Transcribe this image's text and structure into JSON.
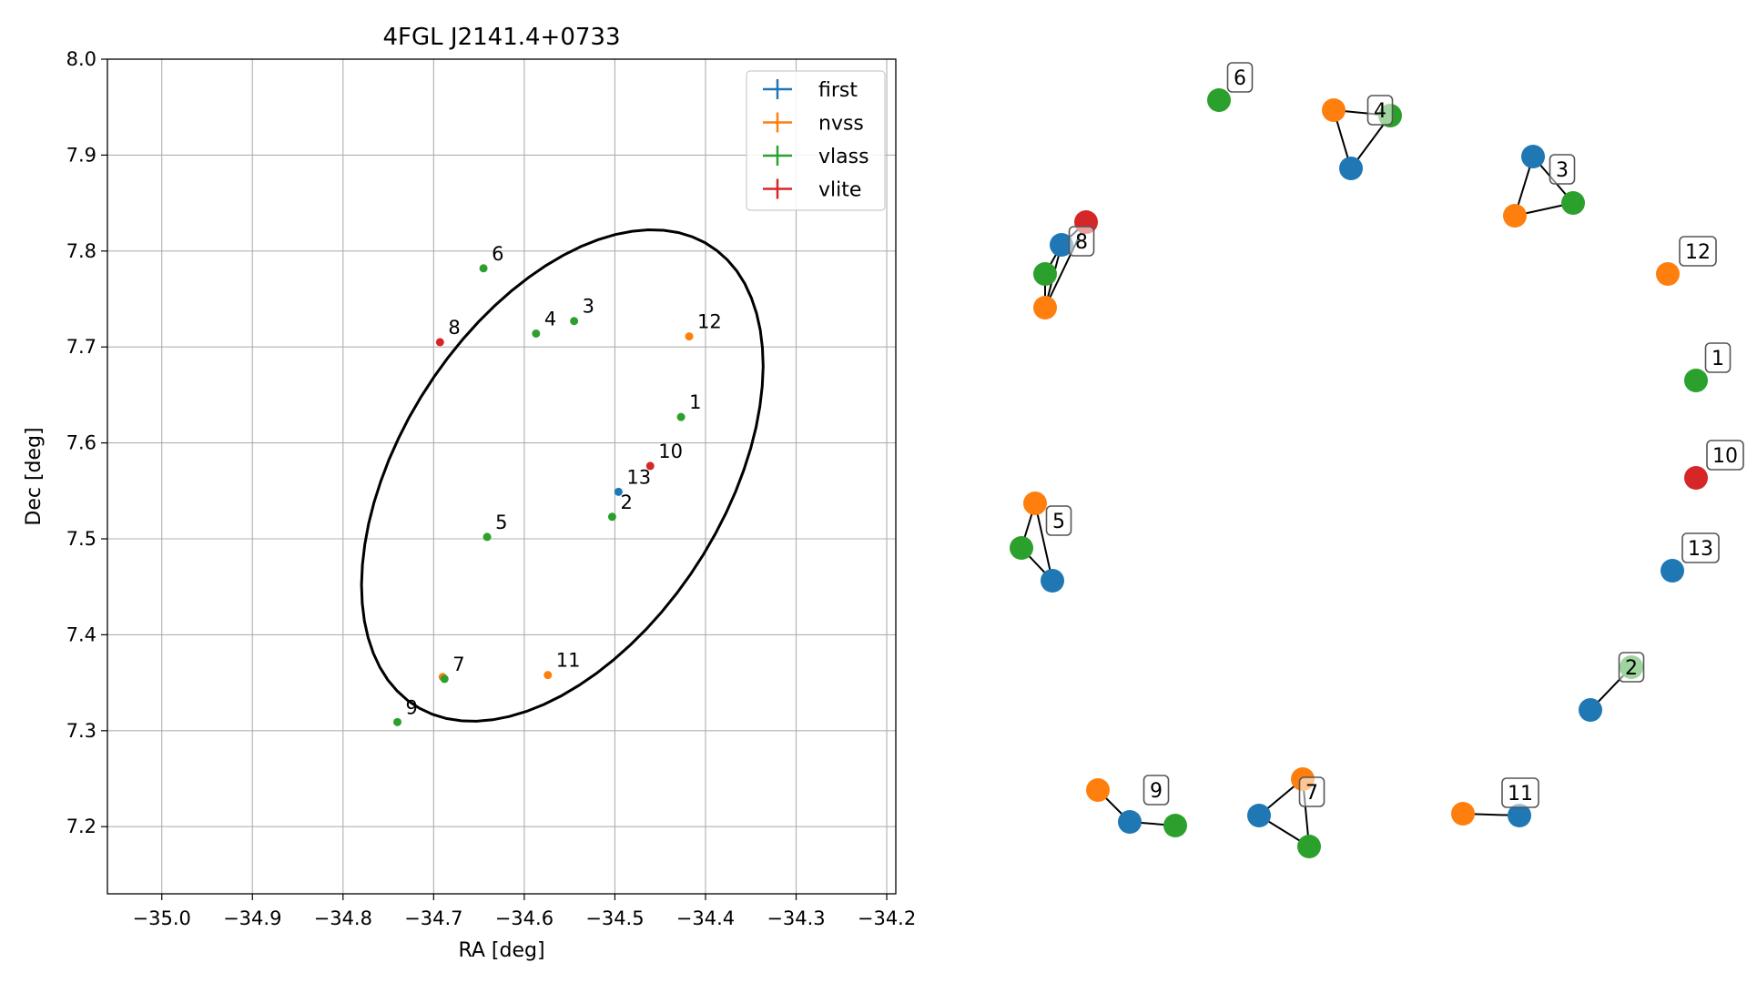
{
  "chart_data": [
    {
      "type": "scatter",
      "title": "4FGL J2141.4+0733",
      "xlabel": "RA [deg]",
      "ylabel": "Dec [deg]",
      "xlim": [
        -35.06,
        -34.19
      ],
      "ylim": [
        7.13,
        8.0
      ],
      "xticks": [
        -35.0,
        -34.9,
        -34.8,
        -34.7,
        -34.6,
        -34.5,
        -34.4,
        -34.3,
        -34.2
      ],
      "xtick_labels": [
        "−35.0",
        "−34.9",
        "−34.8",
        "−34.7",
        "−34.6",
        "−34.5",
        "−34.4",
        "−34.3",
        "−34.2"
      ],
      "yticks": [
        7.2,
        7.3,
        7.4,
        7.5,
        7.6,
        7.7,
        7.8,
        7.9,
        8.0
      ],
      "ytick_labels": [
        "7.2",
        "7.3",
        "7.4",
        "7.5",
        "7.6",
        "7.7",
        "7.8",
        "7.9",
        "8.0"
      ],
      "grid": true,
      "legend": "upper right",
      "series": [
        {
          "name": "first",
          "color": "#1f77b4",
          "points": [
            {
              "x": -34.496,
              "y": 7.549
            }
          ]
        },
        {
          "name": "nvss",
          "color": "#ff7f0e",
          "points": [
            {
              "x": -34.418,
              "y": 7.711
            },
            {
              "x": -34.69,
              "y": 7.356
            },
            {
              "x": -34.574,
              "y": 7.358
            }
          ]
        },
        {
          "name": "vlass",
          "color": "#2ca02c",
          "points": [
            {
              "x": -34.427,
              "y": 7.627
            },
            {
              "x": -34.503,
              "y": 7.523
            },
            {
              "x": -34.545,
              "y": 7.727
            },
            {
              "x": -34.587,
              "y": 7.714
            },
            {
              "x": -34.641,
              "y": 7.502
            },
            {
              "x": -34.645,
              "y": 7.782
            },
            {
              "x": -34.688,
              "y": 7.354
            },
            {
              "x": -34.74,
              "y": 7.309
            }
          ]
        },
        {
          "name": "vlite",
          "color": "#d62728",
          "points": [
            {
              "x": -34.693,
              "y": 7.705
            },
            {
              "x": -34.461,
              "y": 7.576
            }
          ]
        }
      ],
      "annotations": [
        {
          "text": "6",
          "x": -34.645,
          "y": 7.782
        },
        {
          "text": "4",
          "x": -34.587,
          "y": 7.714
        },
        {
          "text": "3",
          "x": -34.545,
          "y": 7.727
        },
        {
          "text": "8",
          "x": -34.693,
          "y": 7.705
        },
        {
          "text": "12",
          "x": -34.418,
          "y": 7.711
        },
        {
          "text": "1",
          "x": -34.427,
          "y": 7.627
        },
        {
          "text": "10",
          "x": -34.461,
          "y": 7.576
        },
        {
          "text": "13",
          "x": -34.496,
          "y": 7.549
        },
        {
          "text": "2",
          "x": -34.503,
          "y": 7.523
        },
        {
          "text": "5",
          "x": -34.641,
          "y": 7.502
        },
        {
          "text": "7",
          "x": -34.688,
          "y": 7.354
        },
        {
          "text": "11",
          "x": -34.574,
          "y": 7.358
        },
        {
          "text": "9",
          "x": -34.74,
          "y": 7.309
        }
      ],
      "ellipse": {
        "center_x": -34.558,
        "center_y": 7.566,
        "semi_major": 0.29,
        "semi_minor": 0.175,
        "angle_deg": 54,
        "color": "#000000"
      }
    },
    {
      "type": "network",
      "node_colors": {
        "first": "#1f77b4",
        "nvss": "#ff7f0e",
        "vlass": "#2ca02c",
        "vlite": "#d62728"
      },
      "clusters": [
        {
          "label": "6",
          "nodes": [
            "vlass"
          ],
          "edges": []
        },
        {
          "label": "4",
          "nodes": [
            "nvss",
            "vlass",
            "first"
          ],
          "edges": [
            [
              0,
              1
            ],
            [
              1,
              2
            ],
            [
              2,
              0
            ]
          ]
        },
        {
          "label": "3",
          "nodes": [
            "first",
            "nvss",
            "vlass"
          ],
          "edges": [
            [
              0,
              1
            ],
            [
              1,
              2
            ],
            [
              2,
              0
            ]
          ]
        },
        {
          "label": "8",
          "nodes": [
            "vlite",
            "first",
            "vlass",
            "nvss"
          ],
          "edges": [
            [
              0,
              1
            ],
            [
              1,
              2
            ],
            [
              2,
              3
            ],
            [
              0,
              3
            ],
            [
              1,
              3
            ]
          ]
        },
        {
          "label": "12",
          "nodes": [
            "nvss"
          ],
          "edges": []
        },
        {
          "label": "1",
          "nodes": [
            "vlass"
          ],
          "edges": []
        },
        {
          "label": "10",
          "nodes": [
            "vlite"
          ],
          "edges": []
        },
        {
          "label": "13",
          "nodes": [
            "first"
          ],
          "edges": []
        },
        {
          "label": "2",
          "nodes": [
            "first",
            "vlass"
          ],
          "edges": [
            [
              0,
              1
            ]
          ]
        },
        {
          "label": "5",
          "nodes": [
            "nvss",
            "vlass",
            "first"
          ],
          "edges": [
            [
              0,
              1
            ],
            [
              1,
              2
            ],
            [
              2,
              0
            ]
          ]
        },
        {
          "label": "9",
          "nodes": [
            "nvss",
            "first",
            "vlass"
          ],
          "edges": [
            [
              0,
              1
            ],
            [
              1,
              2
            ]
          ]
        },
        {
          "label": "7",
          "nodes": [
            "nvss",
            "first",
            "vlass"
          ],
          "edges": [
            [
              0,
              1
            ],
            [
              1,
              2
            ],
            [
              2,
              0
            ]
          ]
        },
        {
          "label": "11",
          "nodes": [
            "nvss",
            "first"
          ],
          "edges": [
            [
              0,
              1
            ]
          ]
        }
      ]
    }
  ]
}
